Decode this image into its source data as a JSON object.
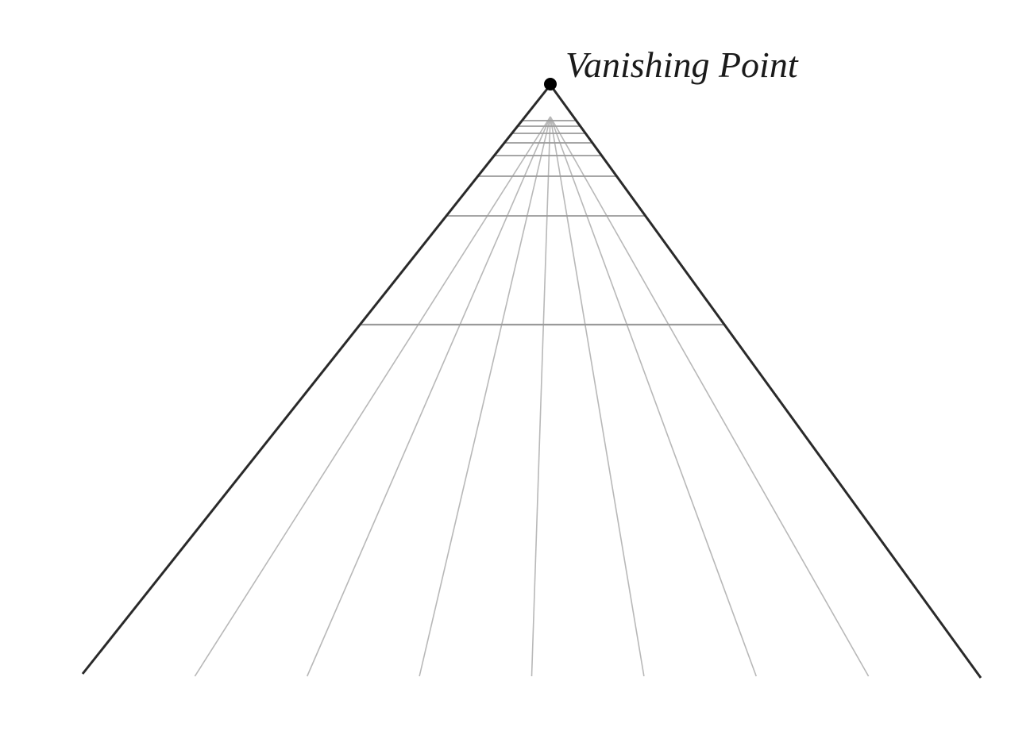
{
  "diagram": {
    "vanishing_point_label": "Vanishing Point",
    "colors": {
      "outline": "#2a2a2a",
      "grid": "#b8b8b8",
      "horizontal_grid": "#9a9a9a",
      "point": "#000000"
    },
    "converging_line_count": 7,
    "horizontal_line_count": 8
  }
}
